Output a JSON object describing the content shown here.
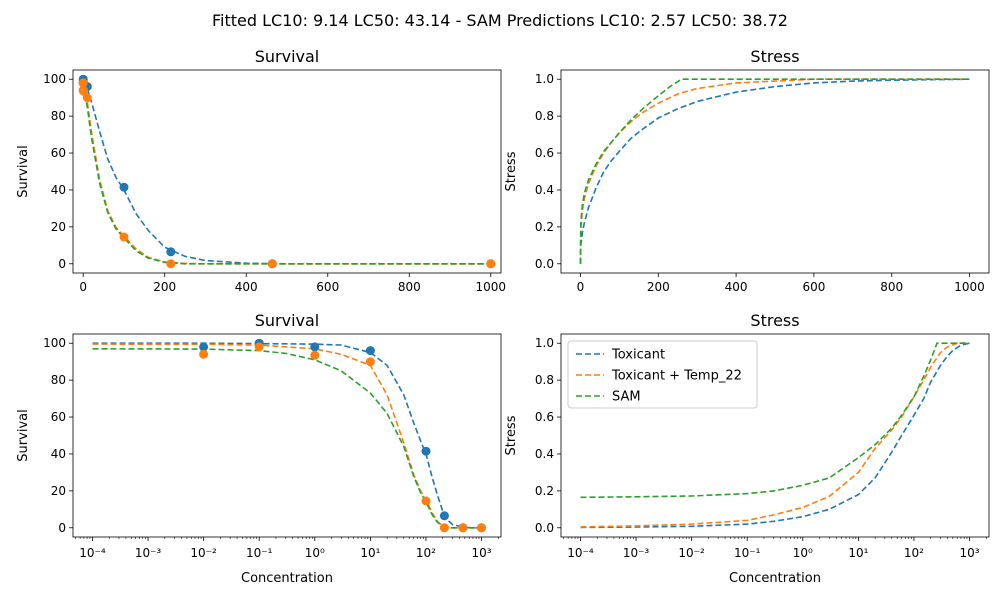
{
  "suptitle": "Fitted LC10: 9.14 LC50: 43.14 - SAM Predictions LC10: 2.57 LC50: 38.72",
  "legend": {
    "placement": "upper-left",
    "entries": [
      "Toxicant",
      "Toxicant + Temp_22",
      "SAM"
    ]
  },
  "colors": {
    "toxicant": "#1f77b4",
    "temp22": "#ff7f0e",
    "sam": "#2ca02c"
  },
  "chart_data": [
    {
      "type": "line",
      "title": "Survival",
      "xlabel": "",
      "ylabel": "Survival",
      "xscale": "linear",
      "xlim": [
        -25,
        1025
      ],
      "ylim": [
        -5,
        105
      ],
      "xticks": [
        0,
        200,
        400,
        600,
        800,
        1000
      ],
      "yticks": [
        0,
        20,
        40,
        60,
        80,
        100
      ],
      "series": [
        {
          "name": "Toxicant",
          "style": "dashed",
          "x": [
            0,
            10,
            20,
            40,
            60,
            80,
            100,
            130,
            160,
            200,
            250,
            300,
            400,
            500,
            700,
            1000
          ],
          "y": [
            99.5,
            95,
            88,
            72,
            57,
            47,
            40,
            27,
            18,
            9,
            4,
            1.8,
            0.3,
            0,
            0,
            0
          ]
        },
        {
          "name": "Toxicant + Temp_22",
          "style": "dashed",
          "x": [
            0,
            1,
            5,
            10,
            20,
            40,
            60,
            80,
            100,
            130,
            160,
            200,
            250,
            300,
            400,
            500,
            700,
            1000
          ],
          "y": [
            97,
            96.5,
            93,
            88,
            72,
            46,
            29,
            20,
            15,
            8,
            3.5,
            1,
            0.2,
            0,
            0,
            0,
            0,
            0
          ]
        },
        {
          "name": "SAM",
          "style": "dashed",
          "x": [
            0,
            1,
            5,
            10,
            20,
            40,
            60,
            80,
            100,
            130,
            160,
            200,
            250,
            300,
            400,
            500,
            700,
            1000
          ],
          "y": [
            97,
            96,
            91,
            85,
            69,
            44,
            28,
            19,
            14,
            7,
            3,
            0.8,
            0,
            0,
            0,
            0,
            0,
            0
          ]
        }
      ],
      "points": [
        {
          "name": "Toxicant",
          "x": [
            0.0001,
            0.01,
            0.1,
            1,
            10,
            100,
            215,
            464,
            1000
          ],
          "y": [
            98,
            98,
            100,
            98,
            96,
            41.5,
            6.5,
            0,
            0
          ]
        },
        {
          "name": "Toxicant + Temp_22",
          "x": [
            0.0001,
            0.01,
            0.1,
            1,
            10,
            100,
            215,
            464,
            1000
          ],
          "y": [
            94,
            94,
            98,
            93.5,
            90,
            14.5,
            0,
            0,
            0
          ]
        }
      ]
    },
    {
      "type": "line",
      "title": "Stress",
      "xlabel": "",
      "ylabel": "Stress",
      "xscale": "linear",
      "xlim": [
        -50,
        1050
      ],
      "ylim": [
        -0.05,
        1.05
      ],
      "xticks": [
        0,
        200,
        400,
        600,
        800,
        1000
      ],
      "yticks": [
        0.0,
        0.2,
        0.4,
        0.6,
        0.8,
        1.0
      ],
      "series": [
        {
          "name": "Toxicant",
          "style": "dashed",
          "x": [
            0,
            1,
            5,
            10,
            20,
            40,
            60,
            80,
            100,
            130,
            160,
            200,
            250,
            300,
            400,
            500,
            600,
            700,
            800,
            1000
          ],
          "y": [
            0,
            0.1,
            0.17,
            0.22,
            0.3,
            0.41,
            0.5,
            0.56,
            0.61,
            0.68,
            0.73,
            0.79,
            0.84,
            0.88,
            0.93,
            0.96,
            0.98,
            0.99,
            0.995,
            1.0
          ]
        },
        {
          "name": "Toxicant + Temp_22",
          "style": "dashed",
          "x": [
            0,
            1,
            5,
            10,
            20,
            40,
            60,
            80,
            100,
            130,
            160,
            200,
            250,
            300,
            400,
            500,
            600,
            1000
          ],
          "y": [
            0,
            0.19,
            0.29,
            0.35,
            0.43,
            0.53,
            0.6,
            0.66,
            0.71,
            0.77,
            0.82,
            0.87,
            0.92,
            0.95,
            0.98,
            0.99,
            1.0,
            1.0
          ]
        },
        {
          "name": "SAM",
          "style": "dashed",
          "x": [
            0,
            1,
            5,
            10,
            20,
            40,
            60,
            80,
            100,
            130,
            160,
            200,
            230,
            260,
            300,
            400,
            600,
            1000
          ],
          "y": [
            0,
            0.22,
            0.32,
            0.38,
            0.45,
            0.54,
            0.61,
            0.66,
            0.71,
            0.78,
            0.84,
            0.91,
            0.96,
            1.0,
            1.0,
            1.0,
            1.0,
            1.0
          ]
        }
      ]
    },
    {
      "type": "line",
      "title": "Survival",
      "xlabel": "Concentration",
      "ylabel": "Survival",
      "xscale": "log",
      "xlim_exp": [
        -4.35,
        3.35
      ],
      "ylim": [
        -5,
        105
      ],
      "xtick_exponents": [
        -4,
        -3,
        -2,
        -1,
        0,
        1,
        2,
        3
      ],
      "yticks": [
        0,
        20,
        40,
        60,
        80,
        100
      ],
      "series": [
        {
          "name": "Toxicant",
          "style": "dashed",
          "x": [
            0.0001,
            0.01,
            0.1,
            1,
            3,
            10,
            20,
            40,
            60,
            80,
            100,
            130,
            160,
            200,
            250,
            300,
            500,
            1000
          ],
          "y": [
            100,
            100,
            99.8,
            99.5,
            99,
            95,
            88,
            72,
            57,
            47,
            40,
            27,
            18,
            9,
            4,
            1.8,
            0.1,
            0
          ]
        },
        {
          "name": "Toxicant + Temp_22",
          "style": "dashed",
          "x": [
            0.0001,
            0.01,
            0.1,
            1,
            3,
            10,
            20,
            40,
            60,
            80,
            100,
            130,
            160,
            200,
            250,
            300,
            500,
            1000
          ],
          "y": [
            99.5,
            99.4,
            99,
            97,
            94,
            88,
            72,
            46,
            29,
            20,
            15,
            8,
            3.5,
            1,
            0.2,
            0,
            0,
            0
          ]
        },
        {
          "name": "SAM",
          "style": "dashed",
          "x": [
            0.0001,
            0.01,
            0.1,
            0.3,
            1,
            3,
            10,
            20,
            40,
            60,
            80,
            100,
            130,
            160,
            200,
            250,
            300,
            500,
            1000
          ],
          "y": [
            97,
            96.8,
            96,
            94.5,
            91,
            85,
            73,
            62,
            44,
            28,
            19,
            14,
            7,
            3,
            0.8,
            0,
            0,
            0,
            0
          ]
        }
      ],
      "points": [
        {
          "name": "Toxicant",
          "x": [
            0.01,
            0.1,
            1,
            10,
            100,
            215,
            464,
            1000
          ],
          "y": [
            98,
            100,
            98,
            96,
            41.5,
            6.5,
            0,
            0
          ]
        },
        {
          "name": "Toxicant + Temp_22",
          "x": [
            0.01,
            0.1,
            1,
            10,
            100,
            215,
            464,
            1000
          ],
          "y": [
            94,
            98,
            93.5,
            90,
            14.5,
            0,
            0,
            0
          ]
        }
      ]
    },
    {
      "type": "line",
      "title": "Stress",
      "xlabel": "Concentration",
      "ylabel": "Stress",
      "xscale": "log",
      "xlim_exp": [
        -4.35,
        3.35
      ],
      "ylim": [
        -0.05,
        1.05
      ],
      "xtick_exponents": [
        -4,
        -3,
        -2,
        -1,
        0,
        1,
        2,
        3
      ],
      "yticks": [
        0.0,
        0.2,
        0.4,
        0.6,
        0.8,
        1.0
      ],
      "series": [
        {
          "name": "Toxicant",
          "style": "dashed",
          "x": [
            0.0001,
            0.001,
            0.01,
            0.1,
            0.3,
            1,
            3,
            10,
            20,
            40,
            60,
            100,
            150,
            200,
            300,
            400,
            500,
            700,
            1000
          ],
          "y": [
            0.002,
            0.004,
            0.008,
            0.02,
            0.035,
            0.06,
            0.1,
            0.18,
            0.27,
            0.41,
            0.5,
            0.61,
            0.7,
            0.79,
            0.88,
            0.93,
            0.96,
            0.99,
            1.0
          ]
        },
        {
          "name": "Toxicant + Temp_22",
          "style": "dashed",
          "x": [
            0.0001,
            0.001,
            0.01,
            0.1,
            0.3,
            1,
            3,
            10,
            20,
            40,
            60,
            100,
            150,
            200,
            300,
            400,
            600,
            1000
          ],
          "y": [
            0.005,
            0.01,
            0.02,
            0.04,
            0.07,
            0.11,
            0.17,
            0.3,
            0.43,
            0.53,
            0.6,
            0.71,
            0.8,
            0.87,
            0.95,
            0.98,
            1.0,
            1.0
          ]
        },
        {
          "name": "SAM",
          "style": "dashed",
          "x": [
            0.0001,
            0.001,
            0.01,
            0.1,
            0.3,
            1,
            3,
            10,
            20,
            40,
            60,
            100,
            150,
            200,
            260,
            400,
            1000
          ],
          "y": [
            0.165,
            0.168,
            0.172,
            0.185,
            0.2,
            0.23,
            0.27,
            0.38,
            0.45,
            0.54,
            0.61,
            0.71,
            0.82,
            0.91,
            1.0,
            1.0,
            1.0
          ]
        }
      ]
    }
  ]
}
